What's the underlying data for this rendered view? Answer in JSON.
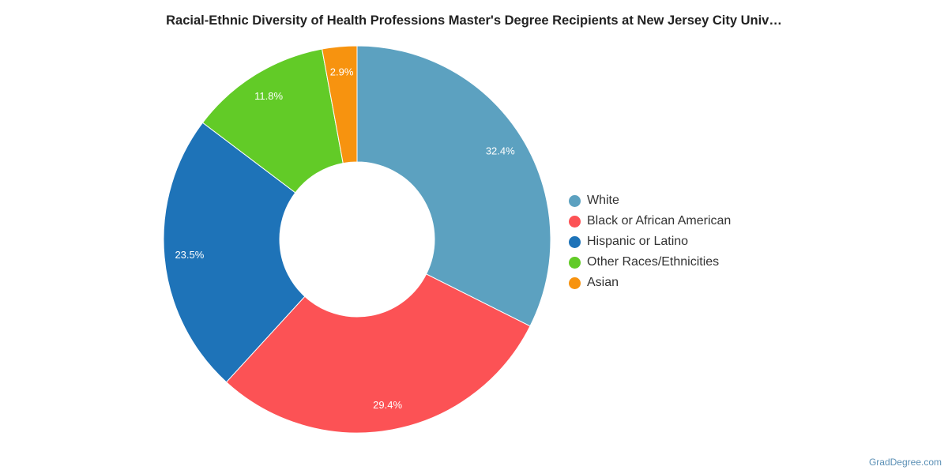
{
  "chart_data": {
    "type": "pie",
    "donut": true,
    "title": "Racial-Ethnic Diversity of Health Professions Master's Degree Recipients at New Jersey City Univ…",
    "legend_position": "right",
    "slices": [
      {
        "label": "White",
        "value": 32.4,
        "value_label": "32.4%",
        "color": "#5ca1c0"
      },
      {
        "label": "Black or African American",
        "value": 29.4,
        "value_label": "29.4%",
        "color": "#fc5255"
      },
      {
        "label": "Hispanic or Latino",
        "value": 23.5,
        "value_label": "23.5%",
        "color": "#1e73b8"
      },
      {
        "label": "Other Races/Ethnicities",
        "value": 11.8,
        "value_label": "11.8%",
        "color": "#62cb27"
      },
      {
        "label": "Asian",
        "value": 2.9,
        "value_label": "2.9%",
        "color": "#f7930f"
      }
    ]
  },
  "credit": "GradDegree.com"
}
